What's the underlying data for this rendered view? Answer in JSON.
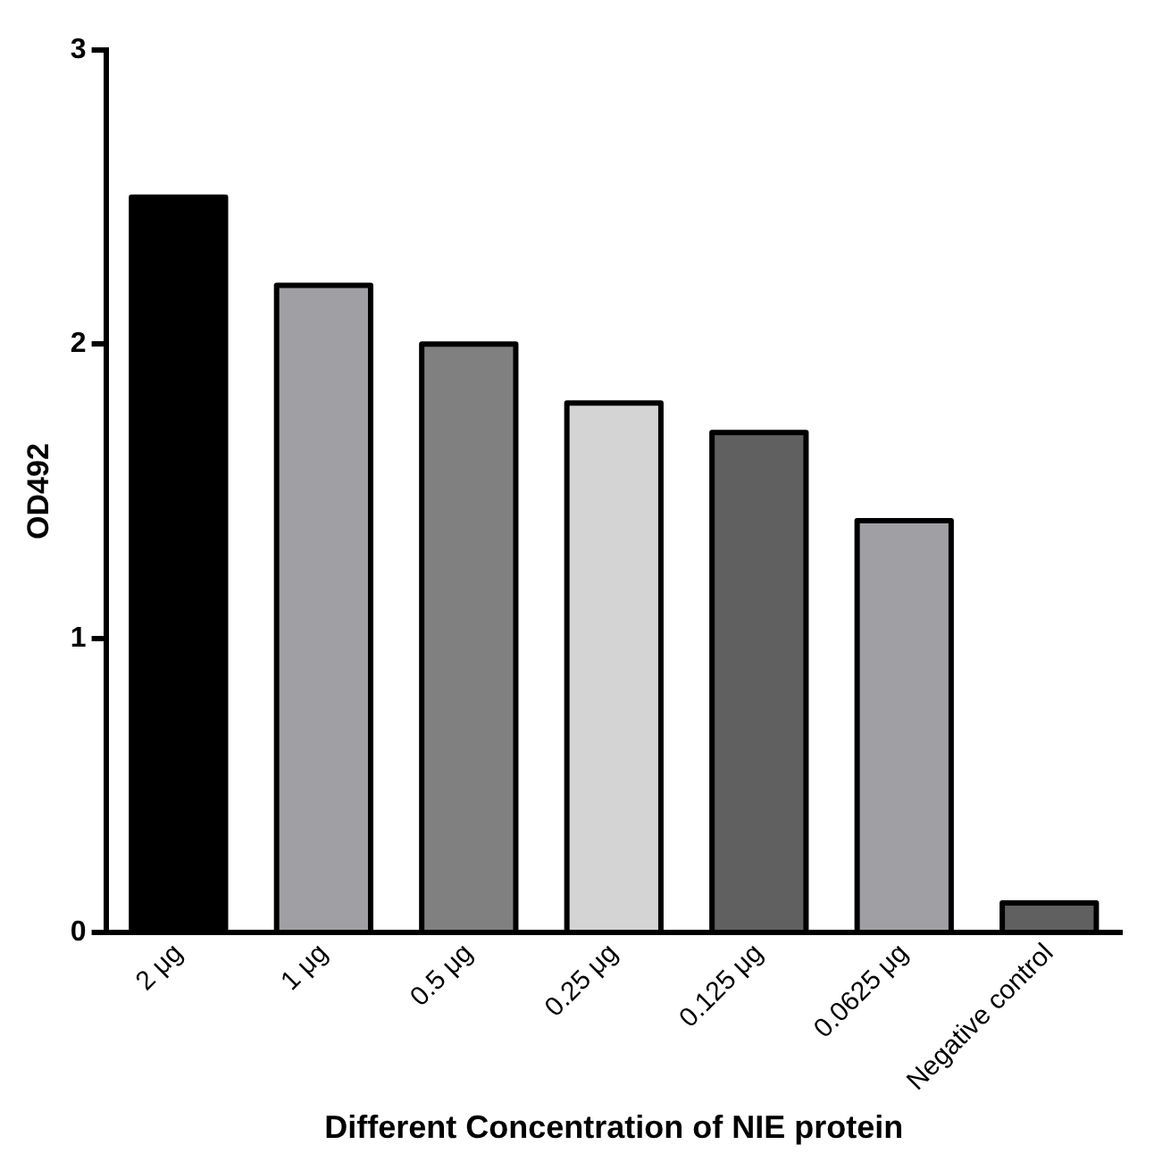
{
  "chart_data": {
    "type": "bar",
    "xlabel": "Different Concentration of NIE protein",
    "ylabel": "OD492",
    "categories": [
      "2 μg",
      "1 μg",
      "0.5 μg",
      "0.25 μg",
      "0.125 μg",
      "0.0625 μg",
      "Negative control"
    ],
    "values": [
      2.5,
      2.2,
      2.0,
      1.8,
      1.7,
      1.4,
      0.1
    ],
    "colors": [
      "#000000",
      "#a0a0a4",
      "#808080",
      "#d4d4d4",
      "#606060",
      "#a0a0a4",
      "#606060"
    ],
    "ylim": [
      0,
      3
    ],
    "yticks": [
      0,
      1,
      2,
      3
    ],
    "grid": false
  }
}
